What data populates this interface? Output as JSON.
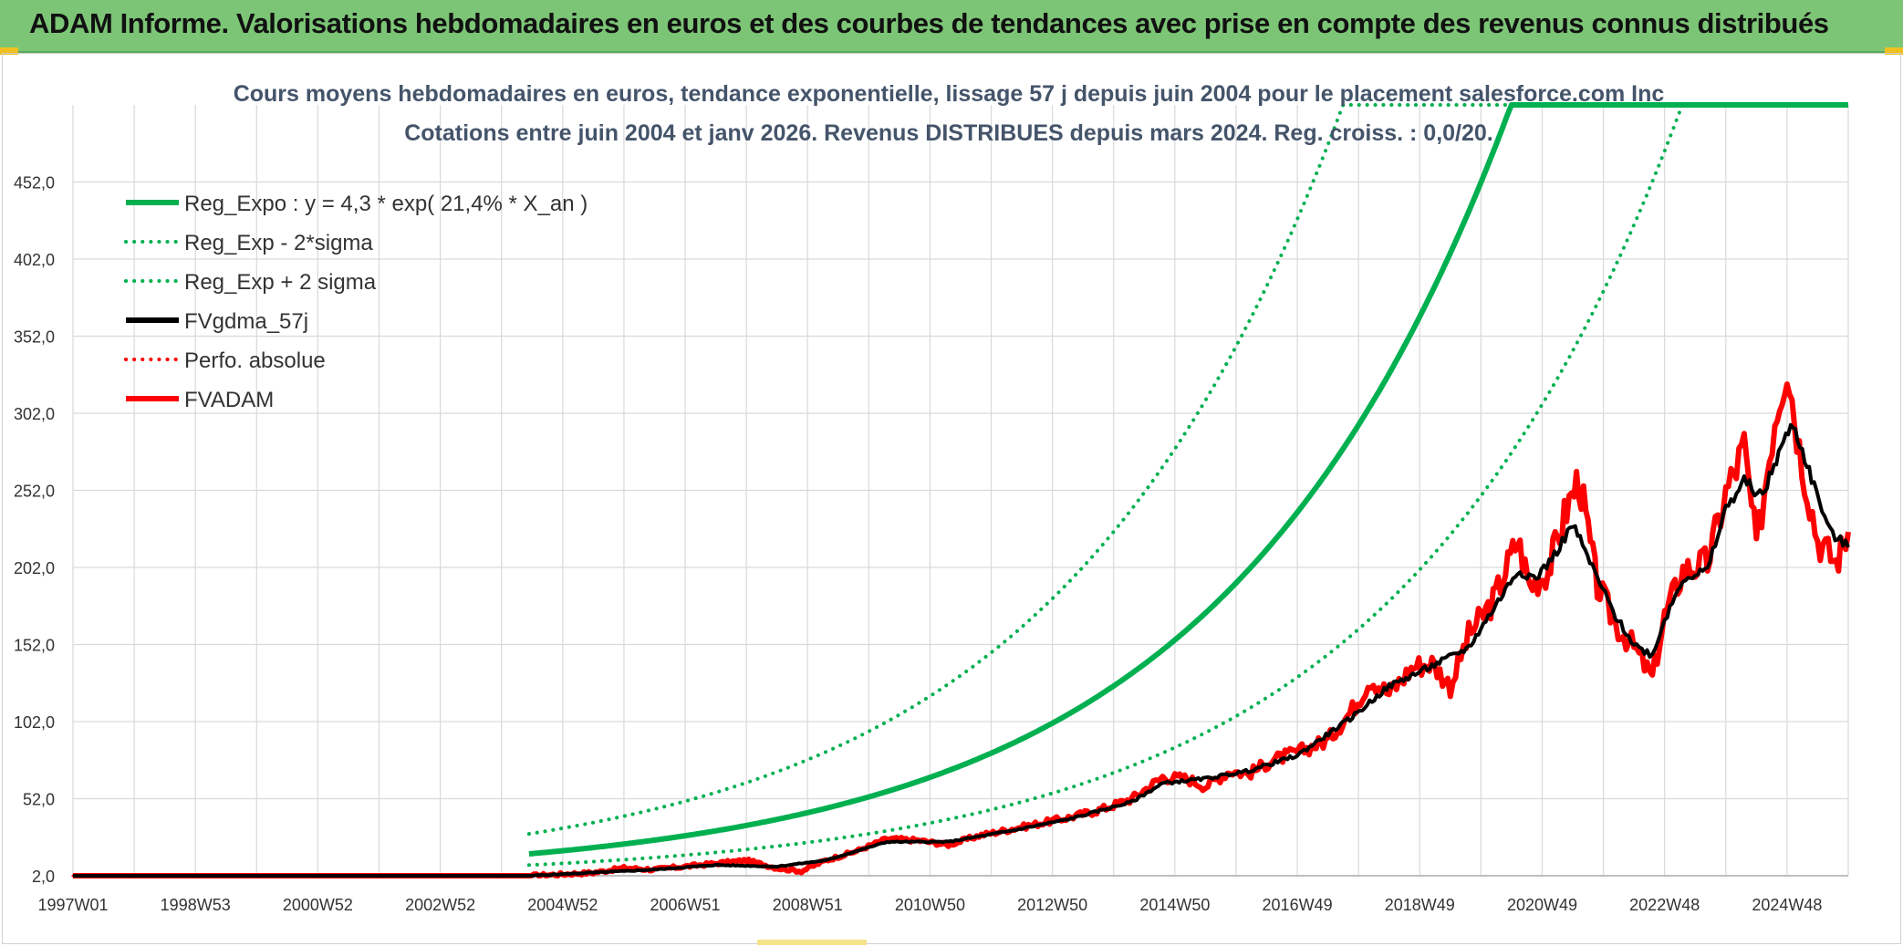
{
  "header": {
    "title": "ADAM Informe. Valorisations hebdomadaires en euros et des courbes de tendances avec prise en compte des revenus connus distribués"
  },
  "chart_data": {
    "type": "line",
    "title": "Cours moyens hebdomadaires en euros, tendance exponentielle, lissage 57 j depuis juin 2004 pour le placement salesforce.com Inc",
    "subtitle": "Cotations entre juin 2004 et janv 2026. Revenus DISTRIBUES depuis mars 2024. Reg. croiss. : 0,0/20.",
    "xlabel": "",
    "ylabel": "",
    "x_range": [
      1997.0,
      2026.0
    ],
    "ylim": [
      2.0,
      502.0
    ],
    "y_ticks": [
      "2,0",
      "52,0",
      "102,0",
      "152,0",
      "202,0",
      "252,0",
      "302,0",
      "352,0",
      "402,0",
      "452,0"
    ],
    "y_tick_values": [
      2,
      52,
      102,
      152,
      202,
      252,
      302,
      352,
      402,
      452
    ],
    "x_ticks": [
      "1997W01",
      "1998W53",
      "2000W52",
      "2002W52",
      "2004W52",
      "2006W51",
      "2008W51",
      "2010W50",
      "2012W50",
      "2014W50",
      "2016W49",
      "2018W49",
      "2020W49",
      "2022W48",
      "2024W48"
    ],
    "x_tick_values": [
      1997.0,
      1999.0,
      2001.0,
      2003.0,
      2005.0,
      2007.0,
      2009.0,
      2011.0,
      2013.0,
      2015.0,
      2017.0,
      2019.0,
      2021.0,
      2023.0,
      2025.0
    ],
    "grid": true,
    "legend_position": "top-left",
    "regression": {
      "a": 4.3,
      "rate": 0.214,
      "x0": 2004.45,
      "x_start": 2004.45,
      "x_end": 2026.0,
      "band_factor_plus": 1.8,
      "band_factor_minus": 0.55
    },
    "series": [
      {
        "name": "Reg_Expo : y = 4,3 * exp( 21,4% *  X_an )",
        "color": "#00b050",
        "style": "solid",
        "width": 6,
        "kind": "reg"
      },
      {
        "name": "Reg_Exp - 2*sigma",
        "color": "#00b050",
        "style": "dotted",
        "width": 4,
        "kind": "reg_minus"
      },
      {
        "name": "Reg_Exp + 2 sigma",
        "color": "#00b050",
        "style": "dotted",
        "width": 4,
        "kind": "reg_plus"
      },
      {
        "name": "FVgdma_57j",
        "color": "#000000",
        "style": "solid",
        "width": 4,
        "kind": "smooth"
      },
      {
        "name": "Perfo. absolue",
        "color": "#ff0000",
        "style": "dotted",
        "width": 3,
        "kind": "perfo"
      },
      {
        "name": "FVADAM",
        "color": "#ff0000",
        "style": "solid",
        "width": 6,
        "kind": "price"
      }
    ],
    "price_points": {
      "x": [
        1997.0,
        2004.45,
        2005.0,
        2005.5,
        2006.0,
        2006.5,
        2007.0,
        2007.5,
        2008.0,
        2008.5,
        2008.9,
        2009.3,
        2009.8,
        2010.3,
        2010.8,
        2011.3,
        2011.8,
        2012.3,
        2012.8,
        2013.3,
        2013.8,
        2014.3,
        2014.8,
        2015.2,
        2015.5,
        2015.9,
        2016.2,
        2016.6,
        2017.0,
        2017.5,
        2017.9,
        2018.2,
        2018.5,
        2018.9,
        2019.2,
        2019.5,
        2019.8,
        2020.2,
        2020.6,
        2020.8,
        2021.1,
        2021.4,
        2021.6,
        2021.9,
        2022.2,
        2022.5,
        2022.8,
        2023.0,
        2023.3,
        2023.7,
        2024.0,
        2024.3,
        2024.5,
        2024.8,
        2025.0,
        2025.2,
        2025.5,
        2025.8,
        2026.0
      ],
      "y": [
        2.0,
        2.0,
        3.0,
        4.0,
        7.0,
        6.0,
        8.0,
        10.0,
        12.0,
        7.0,
        5.0,
        12.0,
        18.0,
        26.0,
        25.0,
        22.0,
        28.0,
        32.0,
        36.0,
        40.0,
        45.0,
        52.0,
        66.0,
        65.0,
        60.0,
        70.0,
        68.0,
        77.0,
        82.0,
        90.0,
        110.0,
        130.0,
        120.0,
        138.0,
        140.0,
        125.0,
        158.0,
        180.0,
        220.0,
        190.0,
        200.0,
        240.0,
        260.0,
        190.0,
        165.0,
        150.0,
        130.0,
        170.0,
        200.0,
        205.0,
        250.0,
        280.0,
        215.0,
        300.0,
        335.0,
        280.0,
        220.0,
        205.0,
        225.0
      ]
    },
    "smooth_points": {
      "x": [
        1997.0,
        2004.45,
        2005.5,
        2006.5,
        2007.5,
        2008.5,
        2009.3,
        2010.3,
        2011.3,
        2012.3,
        2013.3,
        2014.3,
        2014.8,
        2015.5,
        2016.2,
        2017.0,
        2017.9,
        2018.5,
        2019.2,
        2019.8,
        2020.2,
        2020.6,
        2020.9,
        2021.2,
        2021.5,
        2021.9,
        2022.2,
        2022.5,
        2022.8,
        2023.0,
        2023.3,
        2023.7,
        2024.0,
        2024.3,
        2024.6,
        2024.9,
        2025.1,
        2025.4,
        2025.7,
        2026.0
      ],
      "y": [
        2.0,
        2.0,
        4.0,
        6.0,
        9.0,
        8.0,
        12.0,
        24.0,
        24.0,
        31.0,
        39.0,
        50.0,
        62.0,
        65.0,
        70.0,
        80.0,
        105.0,
        125.0,
        138.0,
        150.0,
        175.0,
        200.0,
        195.0,
        210.0,
        230.0,
        195.0,
        170.0,
        152.0,
        145.0,
        168.0,
        195.0,
        200.0,
        240.0,
        258.0,
        248.0,
        280.0,
        295.0,
        260.0,
        225.0,
        215.0
      ]
    }
  }
}
